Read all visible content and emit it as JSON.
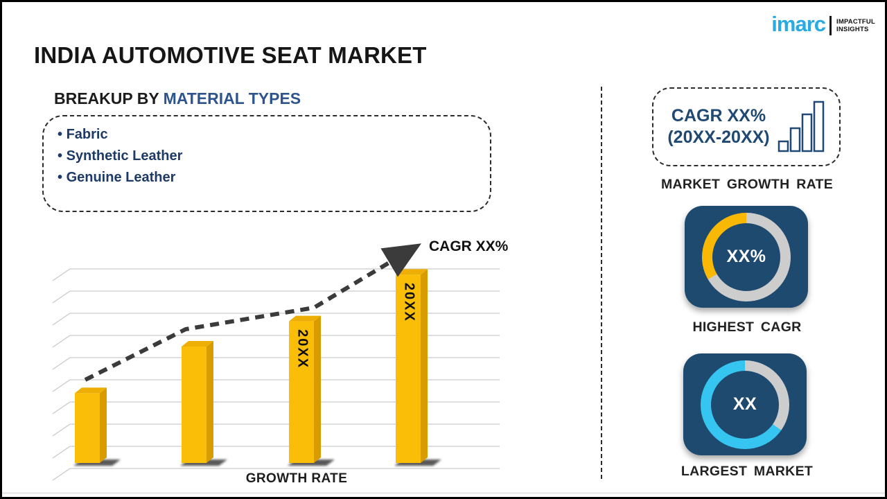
{
  "page": {
    "title": "INDIA AUTOMOTIVE SEAT MARKET"
  },
  "logo": {
    "brand": "imarc",
    "brand_color": "#29ABE2",
    "tagline_line1": "IMPACTFUL",
    "tagline_line2": "INSIGHTS"
  },
  "breakup": {
    "label_prefix": "BREAKUP BY ",
    "label_accent": "MATERIAL TYPES",
    "items": [
      "Fabric",
      "Synthetic Leather",
      "Genuine Leather"
    ]
  },
  "chart_data": {
    "type": "bar",
    "title": "",
    "xlabel": "GROWTH RATE",
    "ylabel": "",
    "categories": [
      "",
      "",
      "20XX",
      "20XX"
    ],
    "values": [
      36,
      60,
      73,
      97
    ],
    "ylim": [
      0,
      100
    ],
    "bar_labels": [
      "",
      "",
      "20XX",
      "20XX"
    ],
    "annotation": "CAGR XX%",
    "grid": "horizontal, 3D-style left ticks, unlabeled axes",
    "trend": "dashed black arrow rising left-to-right",
    "bar_color": "#FBBE08",
    "bar_side_color": "#D89B00",
    "bar_top_color": "#EDAF05",
    "trend_color": "#3b3b3b"
  },
  "growth_box": {
    "line1": "CAGR XX%",
    "line2": "(20XX-20XX)",
    "caption": "MARKET GROWTH RATE"
  },
  "highest_cagr": {
    "value": "XX%",
    "caption": "HIGHEST CAGR",
    "ring_color": "#CDCDCD",
    "accent_color": "#F9B804",
    "gray_until_deg": 240
  },
  "largest_market": {
    "value": "XX",
    "caption": "LARGEST MARKET",
    "ring_color": "#CDCDCD",
    "accent_color": "#35C5F0",
    "gray_until_deg": 125
  },
  "colors": {
    "tile_background": "#1F4A70",
    "accent_navy_text": "#1F4872",
    "heading_accent": "#2E5490",
    "bullet_text": "#1E3A66"
  }
}
